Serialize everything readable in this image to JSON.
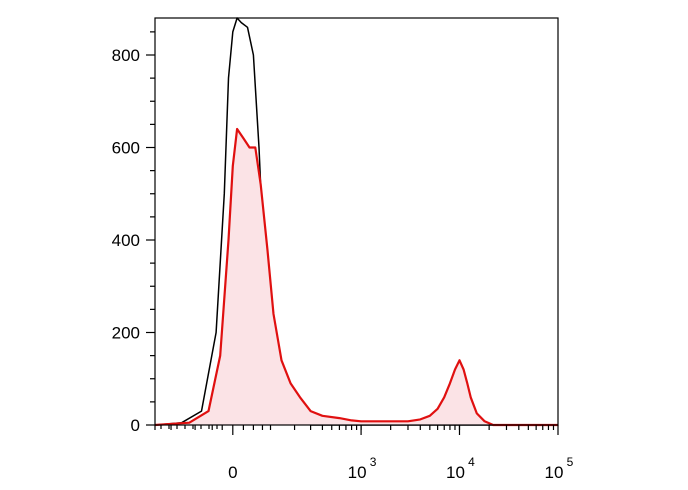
{
  "chart_data": {
    "type": "area",
    "title": "",
    "xlabel": "",
    "ylabel": "",
    "x_scale": "biexponential",
    "ylim": [
      0,
      880
    ],
    "y_ticks": [
      0,
      200,
      400,
      600,
      800
    ],
    "y_tick_labels": [
      "0",
      "200",
      "400",
      "600",
      "800"
    ],
    "x_ticks": [
      {
        "value": 0,
        "base": "0",
        "exp": ""
      },
      {
        "value": 1000,
        "base": "10",
        "exp": "3"
      },
      {
        "value": 10000,
        "base": "10",
        "exp": "4"
      },
      {
        "value": 100000,
        "base": "10",
        "exp": "5"
      }
    ],
    "grid": false,
    "legend": "none",
    "series": [
      {
        "color": "#000000",
        "fill": "none",
        "points": [
          [
            -300,
            0
          ],
          [
            -150,
            5
          ],
          [
            -80,
            30
          ],
          [
            -40,
            200
          ],
          [
            -20,
            500
          ],
          [
            -10,
            750
          ],
          [
            0,
            850
          ],
          [
            10,
            880
          ],
          [
            20,
            870
          ],
          [
            35,
            860
          ],
          [
            50,
            800
          ],
          [
            65,
            600
          ],
          [
            80,
            350
          ],
          [
            100,
            150
          ],
          [
            130,
            60
          ],
          [
            170,
            25
          ],
          [
            220,
            10
          ],
          [
            300,
            0
          ],
          [
            100000,
            0
          ]
        ]
      },
      {
        "color": "#e01010",
        "fill": "#fbe3e6",
        "points": [
          [
            -300,
            0
          ],
          [
            -120,
            5
          ],
          [
            -60,
            30
          ],
          [
            -30,
            150
          ],
          [
            -10,
            400
          ],
          [
            0,
            560
          ],
          [
            10,
            640
          ],
          [
            25,
            620
          ],
          [
            40,
            600
          ],
          [
            55,
            600
          ],
          [
            70,
            520
          ],
          [
            90,
            380
          ],
          [
            110,
            240
          ],
          [
            140,
            140
          ],
          [
            180,
            90
          ],
          [
            230,
            60
          ],
          [
            300,
            30
          ],
          [
            400,
            20
          ],
          [
            600,
            15
          ],
          [
            800,
            10
          ],
          [
            1000,
            8
          ],
          [
            2000,
            8
          ],
          [
            3000,
            8
          ],
          [
            4000,
            12
          ],
          [
            5000,
            20
          ],
          [
            6000,
            35
          ],
          [
            7000,
            60
          ],
          [
            8000,
            90
          ],
          [
            9000,
            120
          ],
          [
            10000,
            140
          ],
          [
            11000,
            120
          ],
          [
            12000,
            90
          ],
          [
            13000,
            60
          ],
          [
            15000,
            25
          ],
          [
            18000,
            8
          ],
          [
            22000,
            0
          ],
          [
            100000,
            0
          ]
        ]
      }
    ]
  }
}
